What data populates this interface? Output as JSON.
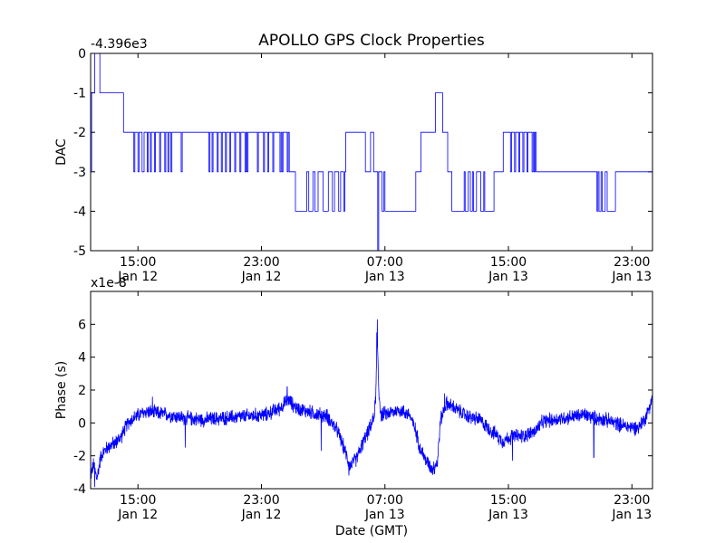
{
  "chart_data": [
    {
      "type": "line",
      "title": "APOLLO GPS Clock Properties",
      "ylabel": "DAC",
      "offset_label": "-4.396e3",
      "ylim": [
        -5,
        0
      ],
      "yticks": [
        "0",
        "-1",
        "-2",
        "-3",
        "-4",
        "-5"
      ],
      "xlim_hours": [
        0,
        27.3
      ],
      "xticks": [
        {
          "hour": 2.3,
          "time": "15:00",
          "date": "Jan 12"
        },
        {
          "hour": 8.3,
          "time": "23:00",
          "date": "Jan 12"
        },
        {
          "hour": 14.3,
          "time": "07:00",
          "date": "Jan 13"
        },
        {
          "hour": 20.3,
          "time": "15:00",
          "date": "Jan 13"
        },
        {
          "hour": 26.3,
          "time": "23:00",
          "date": "Jan 13"
        }
      ],
      "series": [
        {
          "color": "#0000ff",
          "step_points": [
            [
              0.0,
              -3
            ],
            [
              0.05,
              -1
            ],
            [
              0.2,
              0
            ],
            [
              0.45,
              -1
            ],
            [
              1.6,
              -2
            ],
            [
              2.1,
              -3
            ],
            [
              2.15,
              -2
            ],
            [
              2.3,
              -3
            ],
            [
              2.35,
              -2
            ],
            [
              2.5,
              -3
            ],
            [
              2.6,
              -2
            ],
            [
              2.75,
              -3
            ],
            [
              2.8,
              -2
            ],
            [
              2.9,
              -3
            ],
            [
              2.95,
              -2
            ],
            [
              3.1,
              -3
            ],
            [
              3.15,
              -2
            ],
            [
              3.35,
              -3
            ],
            [
              3.4,
              -2
            ],
            [
              3.6,
              -3
            ],
            [
              3.65,
              -2
            ],
            [
              3.75,
              -3
            ],
            [
              3.8,
              -2
            ],
            [
              3.9,
              -3
            ],
            [
              3.95,
              -2
            ],
            [
              4.4,
              -3
            ],
            [
              4.45,
              -2
            ],
            [
              5.75,
              -3
            ],
            [
              5.8,
              -2
            ],
            [
              5.9,
              -3
            ],
            [
              5.95,
              -2
            ],
            [
              6.15,
              -3
            ],
            [
              6.2,
              -2
            ],
            [
              6.35,
              -3
            ],
            [
              6.4,
              -2
            ],
            [
              6.55,
              -3
            ],
            [
              6.6,
              -2
            ],
            [
              6.75,
              -3
            ],
            [
              6.8,
              -2
            ],
            [
              7.0,
              -3
            ],
            [
              7.05,
              -2
            ],
            [
              7.25,
              -3
            ],
            [
              7.3,
              -2
            ],
            [
              7.5,
              -3
            ],
            [
              7.55,
              -2
            ],
            [
              7.6,
              -3
            ],
            [
              7.65,
              -2
            ],
            [
              8.1,
              -3
            ],
            [
              8.15,
              -2
            ],
            [
              8.4,
              -3
            ],
            [
              8.45,
              -2
            ],
            [
              8.6,
              -3
            ],
            [
              8.65,
              -2
            ],
            [
              8.85,
              -3
            ],
            [
              8.9,
              -2
            ],
            [
              9.2,
              -3
            ],
            [
              9.25,
              -2
            ],
            [
              9.3,
              -3
            ],
            [
              9.35,
              -2
            ],
            [
              9.55,
              -3
            ],
            [
              9.6,
              -2
            ],
            [
              9.65,
              -3
            ],
            [
              9.95,
              -4
            ],
            [
              10.5,
              -3
            ],
            [
              10.6,
              -4
            ],
            [
              10.8,
              -3
            ],
            [
              10.9,
              -4
            ],
            [
              11.05,
              -3
            ],
            [
              11.3,
              -4
            ],
            [
              11.55,
              -3
            ],
            [
              11.75,
              -4
            ],
            [
              11.85,
              -3
            ],
            [
              12.05,
              -4
            ],
            [
              12.15,
              -3
            ],
            [
              12.3,
              -4
            ],
            [
              12.35,
              -3
            ],
            [
              12.4,
              -2
            ],
            [
              13.35,
              -3
            ],
            [
              13.6,
              -2
            ],
            [
              13.75,
              -3
            ],
            [
              13.95,
              -5
            ],
            [
              14.0,
              -3
            ],
            [
              14.15,
              -4
            ],
            [
              14.25,
              -3
            ],
            [
              14.3,
              -4
            ],
            [
              15.8,
              -3
            ],
            [
              16.05,
              -2
            ],
            [
              16.75,
              -1
            ],
            [
              17.1,
              -2
            ],
            [
              17.35,
              -3
            ],
            [
              17.55,
              -4
            ],
            [
              18.15,
              -3
            ],
            [
              18.2,
              -4
            ],
            [
              18.35,
              -3
            ],
            [
              18.45,
              -4
            ],
            [
              18.55,
              -3
            ],
            [
              18.6,
              -4
            ],
            [
              18.75,
              -3
            ],
            [
              18.95,
              -4
            ],
            [
              19.1,
              -3
            ],
            [
              19.15,
              -4
            ],
            [
              19.6,
              -3
            ],
            [
              19.7,
              -3
            ],
            [
              20.05,
              -2
            ],
            [
              20.4,
              -3
            ],
            [
              20.45,
              -2
            ],
            [
              20.6,
              -3
            ],
            [
              20.65,
              -2
            ],
            [
              20.8,
              -3
            ],
            [
              20.85,
              -2
            ],
            [
              21.0,
              -3
            ],
            [
              21.05,
              -2
            ],
            [
              21.2,
              -3
            ],
            [
              21.25,
              -2
            ],
            [
              21.45,
              -3
            ],
            [
              21.5,
              -2
            ],
            [
              21.55,
              -3
            ],
            [
              21.6,
              -2
            ],
            [
              21.65,
              -3
            ],
            [
              24.6,
              -4
            ],
            [
              24.65,
              -3
            ],
            [
              24.7,
              -4
            ],
            [
              24.8,
              -3
            ],
            [
              24.85,
              -4
            ],
            [
              25.0,
              -3
            ],
            [
              25.1,
              -4
            ],
            [
              25.5,
              -3
            ],
            [
              25.75,
              -3
            ],
            [
              26.2,
              -3
            ],
            [
              27.3,
              -3
            ]
          ]
        }
      ]
    },
    {
      "type": "line",
      "ylabel": "Phase (s)",
      "xlabel": "Date (GMT)",
      "offset_label": "x1e-8",
      "ylim": [
        -4,
        8
      ],
      "yticks": [
        "6",
        "4",
        "2",
        "0",
        "-2",
        "-4"
      ],
      "ytick_values": [
        6,
        4,
        2,
        0,
        -2,
        -4
      ],
      "xlim_hours": [
        0,
        27.3
      ],
      "xticks": [
        {
          "hour": 2.3,
          "time": "15:00",
          "date": "Jan 12"
        },
        {
          "hour": 8.3,
          "time": "23:00",
          "date": "Jan 12"
        },
        {
          "hour": 14.3,
          "time": "07:00",
          "date": "Jan 13"
        },
        {
          "hour": 20.3,
          "time": "15:00",
          "date": "Jan 13"
        },
        {
          "hour": 26.3,
          "time": "23:00",
          "date": "Jan 13"
        }
      ],
      "series": [
        {
          "color": "#0000ff",
          "noise_amplitude": 0.45,
          "trend": [
            [
              0.0,
              -3.2
            ],
            [
              0.15,
              -2.5
            ],
            [
              0.3,
              -3.4
            ],
            [
              0.5,
              -2.0
            ],
            [
              0.8,
              -1.5
            ],
            [
              1.2,
              -1.2
            ],
            [
              1.5,
              -0.8
            ],
            [
              1.8,
              0.0
            ],
            [
              2.2,
              0.4
            ],
            [
              2.7,
              0.7
            ],
            [
              3.2,
              0.6
            ],
            [
              3.8,
              0.5
            ],
            [
              4.5,
              0.3
            ],
            [
              5.5,
              0.2
            ],
            [
              6.5,
              0.3
            ],
            [
              7.5,
              0.4
            ],
            [
              8.5,
              0.5
            ],
            [
              9.2,
              0.9
            ],
            [
              9.6,
              1.4
            ],
            [
              10.0,
              0.9
            ],
            [
              10.8,
              0.6
            ],
            [
              11.5,
              0.4
            ],
            [
              12.0,
              -0.5
            ],
            [
              12.3,
              -1.5
            ],
            [
              12.6,
              -2.6
            ],
            [
              12.9,
              -2.2
            ],
            [
              13.2,
              -1.3
            ],
            [
              13.5,
              -0.5
            ],
            [
              13.75,
              0.2
            ],
            [
              13.85,
              1.5
            ],
            [
              13.93,
              5.2
            ],
            [
              14.0,
              2.0
            ],
            [
              14.1,
              0.5
            ],
            [
              14.5,
              0.6
            ],
            [
              15.0,
              0.8
            ],
            [
              15.5,
              0.5
            ],
            [
              15.8,
              -0.5
            ],
            [
              16.0,
              -1.5
            ],
            [
              16.3,
              -2.3
            ],
            [
              16.6,
              -2.8
            ],
            [
              16.85,
              -2.4
            ],
            [
              17.0,
              0.2
            ],
            [
              17.3,
              1.2
            ],
            [
              17.8,
              0.8
            ],
            [
              18.3,
              0.4
            ],
            [
              18.9,
              0.2
            ],
            [
              19.3,
              -0.3
            ],
            [
              19.6,
              -0.6
            ],
            [
              20.0,
              -1.1
            ],
            [
              20.5,
              -0.8
            ],
            [
              21.0,
              -0.8
            ],
            [
              21.6,
              -0.5
            ],
            [
              22.0,
              0.1
            ],
            [
              22.5,
              0.2
            ],
            [
              23.0,
              0.3
            ],
            [
              23.5,
              0.4
            ],
            [
              24.0,
              0.5
            ],
            [
              24.5,
              0.3
            ],
            [
              25.0,
              0.2
            ],
            [
              25.5,
              0.0
            ],
            [
              26.0,
              -0.2
            ],
            [
              26.6,
              -0.3
            ],
            [
              27.0,
              0.4
            ],
            [
              27.3,
              1.6
            ]
          ],
          "spikes": [
            [
              13.93,
              6.3
            ],
            [
              13.9,
              5.5
            ],
            [
              0.2,
              -3.9
            ],
            [
              17.2,
              1.8
            ],
            [
              9.55,
              2.2
            ],
            [
              12.55,
              -3.2
            ],
            [
              16.7,
              -3.1
            ],
            [
              24.45,
              -2.1
            ],
            [
              20.5,
              -2.3
            ],
            [
              4.6,
              -1.5
            ],
            [
              3.0,
              1.6
            ],
            [
              11.2,
              -1.7
            ]
          ]
        }
      ]
    }
  ]
}
